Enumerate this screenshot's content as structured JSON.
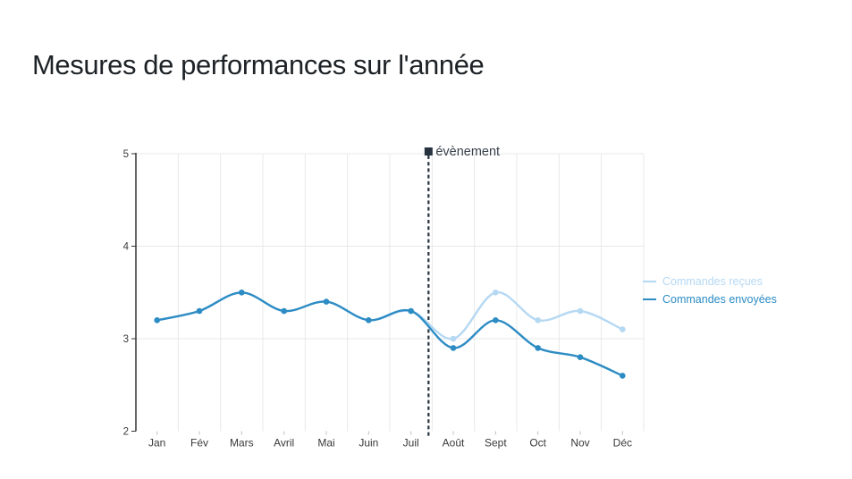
{
  "chart_data": {
    "type": "line",
    "title": "Mesures de performances sur l'année",
    "categories": [
      "Jan",
      "Fév",
      "Mars",
      "Avril",
      "Mai",
      "Juin",
      "Juil",
      "Août",
      "Sept",
      "Oct",
      "Nov",
      "Déc"
    ],
    "series": [
      {
        "name": "Commandes reçues",
        "color": "#b5d8f3",
        "values": [
          3.2,
          3.3,
          3.5,
          3.3,
          3.4,
          3.2,
          3.3,
          3.0,
          3.5,
          3.2,
          3.3,
          3.1
        ]
      },
      {
        "name": "Commandes envoyées",
        "color": "#2d8cc4",
        "values": [
          3.2,
          3.3,
          3.5,
          3.3,
          3.4,
          3.2,
          3.3,
          2.9,
          3.2,
          2.9,
          2.8,
          2.6
        ]
      }
    ],
    "xlabel": "",
    "ylabel": "",
    "ylim": [
      2,
      5
    ],
    "yticks": [
      2,
      3,
      4,
      5
    ],
    "grid": true,
    "legend_position": "right",
    "annotation": {
      "label": "évènement",
      "between": [
        "Juil",
        "Août"
      ],
      "style": "dashed-vertical-line-with-square-marker",
      "color": "#26323f"
    },
    "colors": {
      "grid": "#e8e8e8",
      "axis": "#333333",
      "tick_text": "#3a3a3a",
      "annotation_text": "#39424c"
    }
  }
}
